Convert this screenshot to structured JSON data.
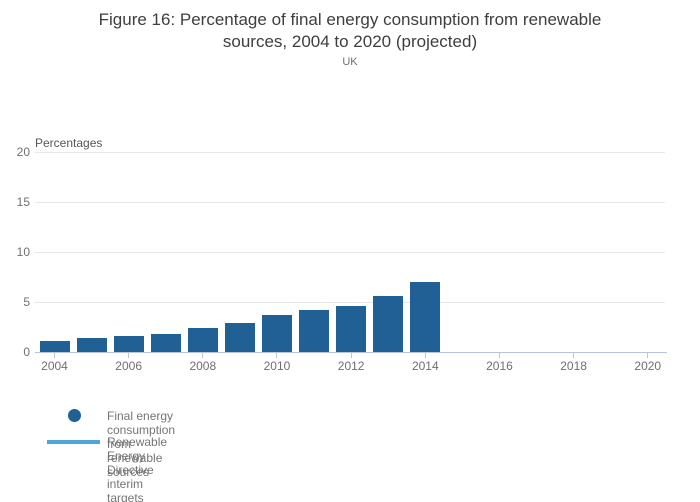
{
  "header": {
    "title": "Figure 16: Percentage of final energy consumption from renewable sources, 2004 to 2020 (projected)",
    "subtitle": "UK"
  },
  "axis": {
    "y_title": "Percentages"
  },
  "chart_data": {
    "type": "bar",
    "title": "Figure 16: Percentage of final energy consumption from renewable sources, 2004 to 2020 (projected)",
    "subtitle": "UK",
    "xlabel": "",
    "ylabel": "Percentages",
    "xlim": [
      2003.5,
      2020.55
    ],
    "ylim": [
      0,
      20
    ],
    "y_ticks": [
      0,
      5,
      10,
      15,
      20
    ],
    "x_ticks": [
      2004,
      2006,
      2008,
      2010,
      2012,
      2014,
      2016,
      2018,
      2020
    ],
    "grid": true,
    "legend_position": "bottom-left",
    "series": [
      {
        "name": "Final energy consumption from renewable sources",
        "type": "bar",
        "color": "#206095",
        "x": [
          2004,
          2005,
          2006,
          2007,
          2008,
          2009,
          2010,
          2011,
          2012,
          2013,
          2014
        ],
        "values": [
          1.1,
          1.4,
          1.6,
          1.8,
          2.4,
          2.9,
          3.7,
          4.2,
          4.6,
          5.6,
          7.0
        ]
      },
      {
        "name": "Renewable Energy Directive interim targets",
        "type": "line",
        "color": "#4ea5d8",
        "x": [],
        "values": []
      }
    ]
  },
  "legend": {
    "items": [
      {
        "label": "Final energy consumption from renewable sources",
        "marker": "circle",
        "color": "#206095"
      },
      {
        "label": "Renewable Energy Directive interim targets",
        "marker": "line",
        "color": "#4ea5d8"
      }
    ]
  },
  "colors": {
    "bar": "#206095",
    "target_line": "#4ea5d8",
    "axis_line": "#b7c6da",
    "gridline": "#e8e8e8",
    "title_text": "#3e3e3e",
    "muted_text": "#6f6f6f"
  }
}
